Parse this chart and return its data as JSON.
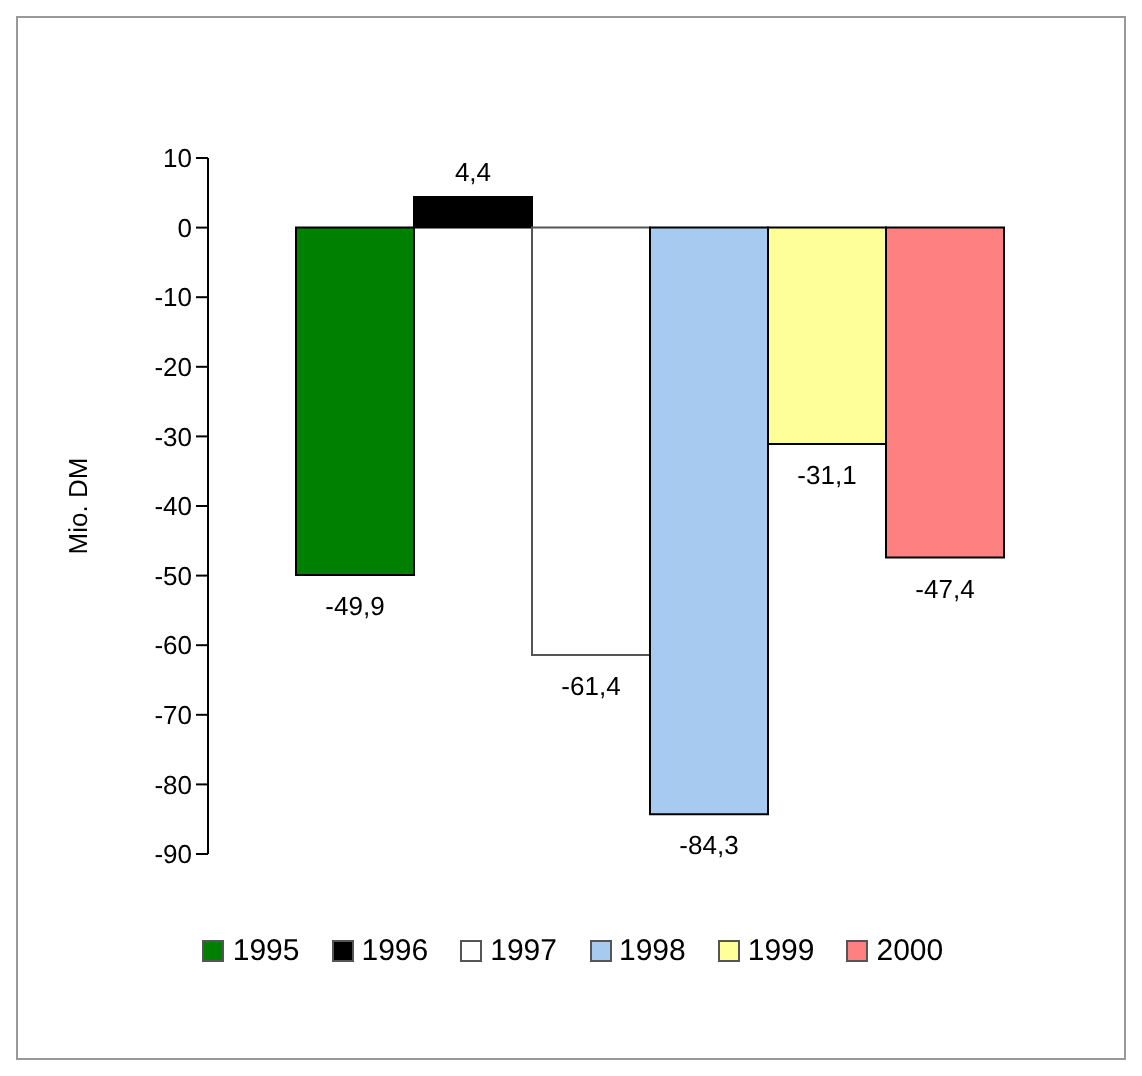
{
  "chart_data": {
    "type": "bar",
    "ylabel": "Mio. DM",
    "categories": [
      null
    ],
    "series": [
      {
        "name": "1995",
        "color": "#008000",
        "values": [
          -49.9
        ],
        "value_labels": [
          "-49,9"
        ]
      },
      {
        "name": "1996",
        "color": "#000000",
        "values": [
          4.4
        ],
        "value_labels": [
          "4,4"
        ]
      },
      {
        "name": "1997",
        "color": "#ffffff",
        "values": [
          -61.4
        ],
        "value_labels": [
          "-61,4"
        ]
      },
      {
        "name": "1998",
        "color": "#a6caf0",
        "values": [
          -84.3
        ],
        "value_labels": [
          "-84,3"
        ]
      },
      {
        "name": "1999",
        "color": "#ffff99",
        "values": [
          -31.1
        ],
        "value_labels": [
          "-31,1"
        ]
      },
      {
        "name": "2000",
        "color": "#ff8080",
        "values": [
          -47.4
        ],
        "value_labels": [
          "-47,4"
        ]
      }
    ],
    "ylim": [
      -90,
      10
    ],
    "yticks": [
      10,
      0,
      -10,
      -20,
      -30,
      -40,
      -50,
      -60,
      -70,
      -80,
      -90
    ],
    "grid": false,
    "legend": "bottom"
  }
}
